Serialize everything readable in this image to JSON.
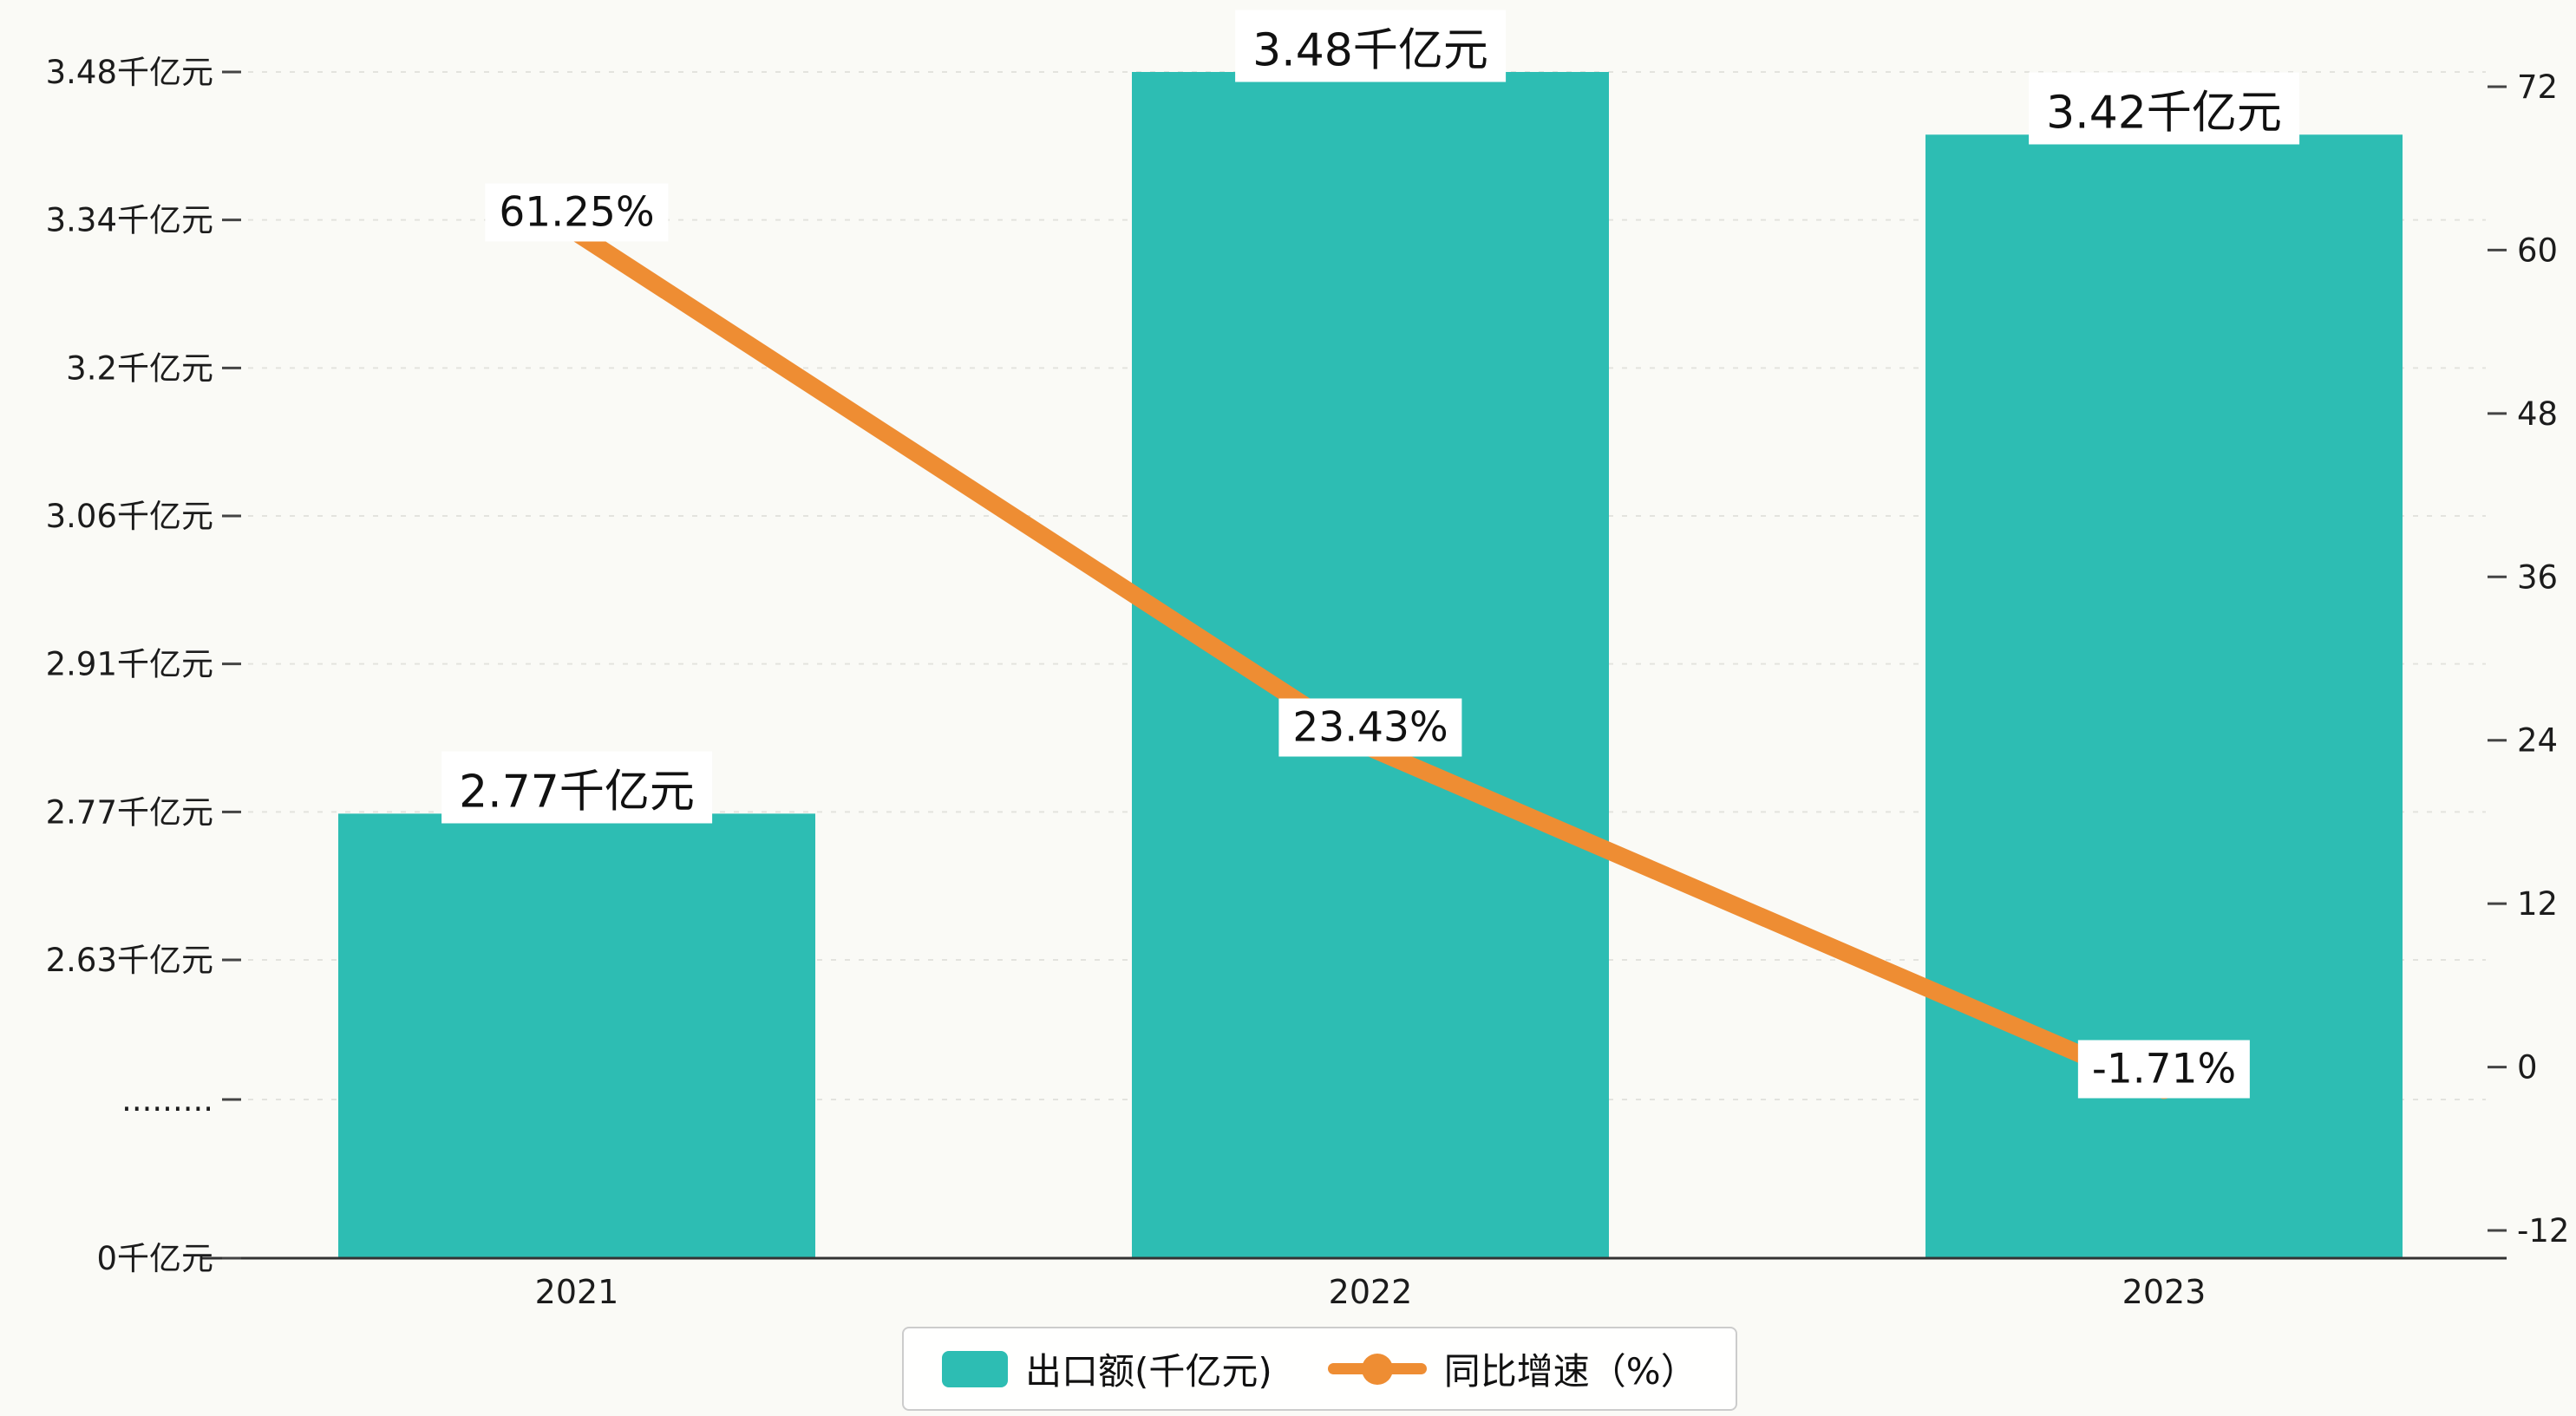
{
  "chart_data": {
    "type": "bar",
    "subtype": "combo-bar-line-dual-axis",
    "title": "",
    "categories": [
      "2021",
      "2022",
      "2023"
    ],
    "series": [
      {
        "name": "出口额(千亿元)",
        "type": "bar",
        "axis": "left",
        "values": [
          2.77,
          3.48,
          3.42
        ],
        "labels": [
          "2.77千亿元",
          "3.48千亿元",
          "3.42千亿元"
        ],
        "color": "#2dbdb3"
      },
      {
        "name": "同比增速（%）",
        "type": "line",
        "axis": "right",
        "values": [
          61.25,
          23.43,
          -1.71
        ],
        "labels": [
          "61.25%",
          "23.43%",
          "-1.71%"
        ],
        "color": "#ee8d33"
      }
    ],
    "left_axis": {
      "tick_labels": [
        "3.48千亿元",
        "3.34千亿元",
        "3.2千亿元",
        "3.06千亿元",
        "2.91千亿元",
        "2.77千亿元",
        "2.63千亿元",
        ".........",
        "0千亿元"
      ],
      "has_break": true,
      "value_range_top_segment": [
        2.63,
        3.48
      ]
    },
    "right_axis": {
      "ticks": [
        72,
        60,
        48,
        36,
        24,
        12,
        0,
        -12
      ],
      "range": [
        -12,
        72
      ]
    },
    "legend": [
      {
        "label": "出口额(千亿元)",
        "marker": "bar",
        "color": "#2dbdb3"
      },
      {
        "label": "同比增速（%）",
        "marker": "line-dot",
        "color": "#ee8d33"
      }
    ],
    "grid": "dashed-horizontal",
    "background": "#fafaf6",
    "text_color": "#1c1c1c"
  }
}
